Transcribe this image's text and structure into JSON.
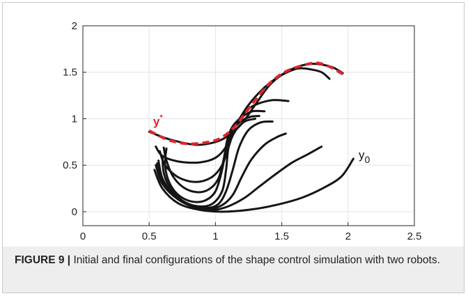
{
  "caption": {
    "label": "FIGURE 9",
    "separator": " | ",
    "text": "Initial and final configurations of the shape control simulation with two robots."
  },
  "colors": {
    "curve": "#151515",
    "target": "#e0252b",
    "grid": "#e3e3e3",
    "axis": "#262626",
    "caption_bg": "#eeeeee"
  },
  "chart_data": {
    "type": "line",
    "title": "",
    "xlabel": "",
    "ylabel": "",
    "xlim": [
      0,
      2.5
    ],
    "ylim": [
      -0.15,
      2
    ],
    "x_ticks": [
      "0",
      "0.5",
      "1",
      "1.5",
      "2",
      "2.5"
    ],
    "y_ticks": [
      "0",
      "0.5",
      "1",
      "1.5",
      "2"
    ],
    "grid": true,
    "annotations": [
      {
        "text": "y",
        "sup": "*",
        "x": 0.53,
        "y": 0.93,
        "color": "#e0252b"
      },
      {
        "text": "y",
        "sub": "0",
        "x": 2.08,
        "y": 0.57,
        "color": "#151515"
      }
    ],
    "series": [
      {
        "style": "solid",
        "points": [
          [
            0.5,
            0.86
          ],
          [
            0.65,
            0.78
          ],
          [
            0.85,
            0.72
          ],
          [
            1.0,
            0.75
          ],
          [
            1.1,
            0.82
          ],
          [
            1.2,
            0.95
          ],
          [
            1.3,
            1.15
          ],
          [
            1.42,
            1.38
          ],
          [
            1.57,
            1.53
          ],
          [
            1.72,
            1.59
          ],
          [
            1.87,
            1.56
          ],
          [
            1.96,
            1.49
          ]
        ]
      },
      {
        "style": "solid",
        "points": [
          [
            0.55,
            0.7
          ],
          [
            0.6,
            0.6
          ],
          [
            0.72,
            0.54
          ],
          [
            0.88,
            0.53
          ],
          [
            1.0,
            0.58
          ],
          [
            1.08,
            0.7
          ],
          [
            1.15,
            0.92
          ],
          [
            1.25,
            1.15
          ],
          [
            1.38,
            1.35
          ],
          [
            1.5,
            1.47
          ],
          [
            1.62,
            1.54
          ],
          [
            1.72,
            1.53
          ],
          [
            1.8,
            1.5
          ],
          [
            1.86,
            1.43
          ]
        ]
      },
      {
        "style": "solid",
        "points": [
          [
            0.58,
            0.65
          ],
          [
            0.62,
            0.5
          ],
          [
            0.72,
            0.37
          ],
          [
            0.85,
            0.32
          ],
          [
            0.97,
            0.37
          ],
          [
            1.05,
            0.5
          ],
          [
            1.1,
            0.7
          ],
          [
            1.15,
            0.92
          ],
          [
            1.22,
            1.07
          ],
          [
            1.3,
            1.15
          ],
          [
            1.43,
            1.2
          ],
          [
            1.55,
            1.19
          ]
        ]
      },
      {
        "style": "solid",
        "points": [
          [
            0.61,
            0.69
          ],
          [
            0.63,
            0.55
          ],
          [
            0.68,
            0.38
          ],
          [
            0.76,
            0.26
          ],
          [
            0.86,
            0.21
          ],
          [
            0.95,
            0.24
          ],
          [
            1.02,
            0.35
          ],
          [
            1.06,
            0.55
          ],
          [
            1.09,
            0.78
          ],
          [
            1.13,
            0.92
          ],
          [
            1.2,
            1.02
          ],
          [
            1.28,
            1.08
          ],
          [
            1.37,
            1.08
          ]
        ]
      },
      {
        "style": "solid",
        "points": [
          [
            0.63,
            0.68
          ],
          [
            0.62,
            0.5
          ],
          [
            0.65,
            0.32
          ],
          [
            0.72,
            0.18
          ],
          [
            0.82,
            0.11
          ],
          [
            0.92,
            0.12
          ],
          [
            1.0,
            0.22
          ],
          [
            1.05,
            0.45
          ],
          [
            1.08,
            0.68
          ],
          [
            1.12,
            0.85
          ],
          [
            1.18,
            0.96
          ],
          [
            1.26,
            1.02
          ],
          [
            1.33,
            1.03
          ]
        ]
      },
      {
        "style": "solid",
        "points": [
          [
            0.6,
            0.6
          ],
          [
            0.61,
            0.42
          ],
          [
            0.66,
            0.25
          ],
          [
            0.75,
            0.12
          ],
          [
            0.86,
            0.06
          ],
          [
            0.97,
            0.08
          ],
          [
            1.05,
            0.22
          ],
          [
            1.08,
            0.45
          ],
          [
            1.1,
            0.7
          ],
          [
            1.15,
            0.87
          ],
          [
            1.22,
            0.97
          ],
          [
            1.3,
            1.0
          ]
        ]
      },
      {
        "style": "solid",
        "points": [
          [
            0.57,
            0.55
          ],
          [
            0.6,
            0.36
          ],
          [
            0.68,
            0.19
          ],
          [
            0.8,
            0.08
          ],
          [
            0.93,
            0.04
          ],
          [
            1.02,
            0.08
          ],
          [
            1.08,
            0.22
          ],
          [
            1.13,
            0.45
          ],
          [
            1.18,
            0.7
          ],
          [
            1.25,
            0.88
          ],
          [
            1.34,
            0.96
          ],
          [
            1.43,
            0.97
          ]
        ]
      },
      {
        "style": "solid",
        "points": [
          [
            0.56,
            0.52
          ],
          [
            0.6,
            0.33
          ],
          [
            0.7,
            0.16
          ],
          [
            0.82,
            0.06
          ],
          [
            0.95,
            0.03
          ],
          [
            1.05,
            0.07
          ],
          [
            1.13,
            0.18
          ],
          [
            1.2,
            0.38
          ],
          [
            1.27,
            0.56
          ],
          [
            1.37,
            0.72
          ],
          [
            1.46,
            0.8
          ],
          [
            1.53,
            0.84
          ]
        ]
      },
      {
        "style": "solid",
        "points": [
          [
            0.55,
            0.5
          ],
          [
            0.6,
            0.3
          ],
          [
            0.72,
            0.13
          ],
          [
            0.86,
            0.04
          ],
          [
            0.99,
            0.02
          ],
          [
            1.1,
            0.06
          ],
          [
            1.22,
            0.15
          ],
          [
            1.33,
            0.27
          ],
          [
            1.45,
            0.4
          ],
          [
            1.58,
            0.53
          ],
          [
            1.7,
            0.62
          ],
          [
            1.8,
            0.7
          ]
        ]
      },
      {
        "style": "solid",
        "points": [
          [
            0.54,
            0.45
          ],
          [
            0.6,
            0.25
          ],
          [
            0.72,
            0.09
          ],
          [
            0.88,
            0.02
          ],
          [
            1.05,
            0.0
          ],
          [
            1.25,
            0.02
          ],
          [
            1.45,
            0.07
          ],
          [
            1.65,
            0.15
          ],
          [
            1.82,
            0.26
          ],
          [
            1.95,
            0.38
          ],
          [
            2.04,
            0.57
          ]
        ]
      },
      {
        "style": "dashed",
        "points": [
          [
            0.5,
            0.87
          ],
          [
            0.65,
            0.77
          ],
          [
            0.8,
            0.73
          ],
          [
            0.95,
            0.75
          ],
          [
            1.05,
            0.8
          ],
          [
            1.15,
            0.92
          ],
          [
            1.23,
            1.07
          ],
          [
            1.3,
            1.2
          ],
          [
            1.4,
            1.37
          ],
          [
            1.52,
            1.5
          ],
          [
            1.65,
            1.57
          ],
          [
            1.76,
            1.6
          ],
          [
            1.86,
            1.56
          ],
          [
            1.96,
            1.48
          ]
        ]
      }
    ]
  }
}
